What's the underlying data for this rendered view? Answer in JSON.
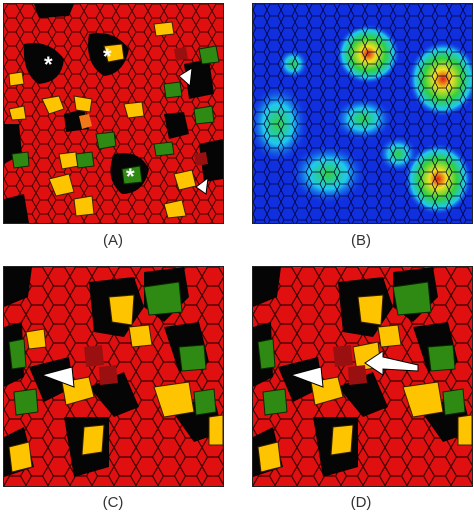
{
  "panels": [
    {
      "id": "A",
      "label": "(A)",
      "kind": "tissue-map",
      "markers": [
        "*",
        "*",
        "*"
      ]
    },
    {
      "id": "B",
      "label": "(B)",
      "kind": "heatmap"
    },
    {
      "id": "C",
      "label": "(C)",
      "kind": "tissue-zoom"
    },
    {
      "id": "D",
      "label": "(D)",
      "kind": "tissue-zoom"
    }
  ],
  "colors": {
    "cell_red": "#e01010",
    "cell_yellow": "#ffc400",
    "cell_green": "#2f8a14",
    "cell_darkred": "#9a1010",
    "cell_orange": "#f07818",
    "background": "#000000",
    "heat_blue": "#1030e0",
    "heat_cyan": "#20c8f0",
    "heat_green": "#30d040",
    "heat_yellow": "#f0e020",
    "heat_red": "#e02010"
  }
}
